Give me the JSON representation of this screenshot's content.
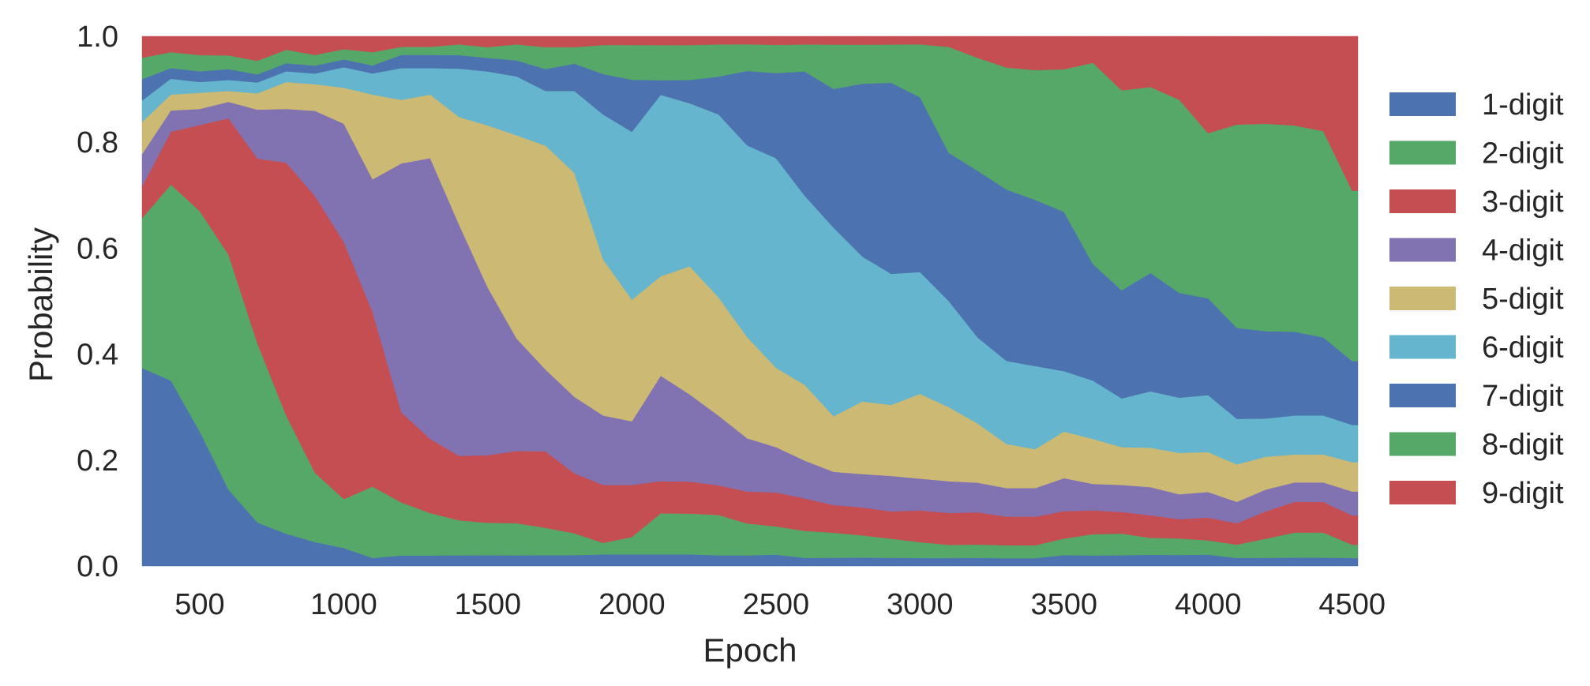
{
  "chart_data": {
    "type": "area",
    "stacked": true,
    "normalized": true,
    "xlabel": "Epoch",
    "ylabel": "Probability",
    "xlim": [
      300,
      4520
    ],
    "ylim": [
      0,
      1
    ],
    "x_ticks": [
      500,
      1000,
      1500,
      2000,
      2500,
      3000,
      3500,
      4000,
      4500
    ],
    "y_ticks": [
      0.0,
      0.2,
      0.4,
      0.6,
      0.8,
      1.0
    ],
    "grid": false,
    "legend_position": "right",
    "x": [
      300,
      400,
      500,
      600,
      700,
      800,
      900,
      1000,
      1100,
      1200,
      1300,
      1400,
      1500,
      1600,
      1700,
      1800,
      1900,
      2000,
      2100,
      2200,
      2300,
      2400,
      2500,
      2600,
      2700,
      2800,
      2900,
      3000,
      3100,
      3200,
      3300,
      3400,
      3500,
      3600,
      3700,
      3800,
      3900,
      4000,
      4100,
      4200,
      4300,
      4400,
      4500,
      4520
    ],
    "series": [
      {
        "name": "1-digit",
        "color": "#4c72b0",
        "values": [
          0.37,
          0.35,
          0.25,
          0.14,
          0.08,
          0.06,
          0.045,
          0.035,
          0.015,
          0.02,
          0.02,
          0.02,
          0.02,
          0.02,
          0.02,
          0.02,
          0.02,
          0.02,
          0.02,
          0.02,
          0.02,
          0.02,
          0.02,
          0.015,
          0.015,
          0.015,
          0.015,
          0.015,
          0.015,
          0.015,
          0.015,
          0.015,
          0.02,
          0.02,
          0.02,
          0.02,
          0.02,
          0.02,
          0.015,
          0.015,
          0.015,
          0.015,
          0.015,
          0.015
        ]
      },
      {
        "name": "2-digit",
        "color": "#55a868",
        "values": [
          0.28,
          0.37,
          0.41,
          0.43,
          0.33,
          0.22,
          0.13,
          0.095,
          0.135,
          0.1,
          0.08,
          0.065,
          0.06,
          0.06,
          0.05,
          0.04,
          0.02,
          0.03,
          0.07,
          0.07,
          0.075,
          0.06,
          0.05,
          0.05,
          0.045,
          0.04,
          0.035,
          0.03,
          0.025,
          0.025,
          0.025,
          0.025,
          0.03,
          0.04,
          0.04,
          0.03,
          0.03,
          0.025,
          0.025,
          0.035,
          0.045,
          0.045,
          0.025,
          0.025
        ]
      },
      {
        "name": "3-digit",
        "color": "#c44e52",
        "values": [
          0.06,
          0.1,
          0.16,
          0.25,
          0.34,
          0.47,
          0.52,
          0.5,
          0.33,
          0.17,
          0.14,
          0.12,
          0.125,
          0.135,
          0.14,
          0.11,
          0.1,
          0.09,
          0.055,
          0.055,
          0.055,
          0.06,
          0.06,
          0.06,
          0.05,
          0.05,
          0.05,
          0.06,
          0.06,
          0.06,
          0.055,
          0.055,
          0.05,
          0.045,
          0.04,
          0.04,
          0.035,
          0.04,
          0.04,
          0.05,
          0.055,
          0.055,
          0.055,
          0.055
        ]
      },
      {
        "name": "4-digit",
        "color": "#8172b2",
        "values": [
          0.06,
          0.04,
          0.03,
          0.03,
          0.09,
          0.1,
          0.16,
          0.23,
          0.25,
          0.47,
          0.53,
          0.43,
          0.31,
          0.21,
          0.15,
          0.14,
          0.12,
          0.11,
          0.18,
          0.15,
          0.13,
          0.1,
          0.08,
          0.07,
          0.06,
          0.06,
          0.065,
          0.06,
          0.06,
          0.055,
          0.055,
          0.055,
          0.06,
          0.05,
          0.05,
          0.05,
          0.045,
          0.045,
          0.04,
          0.04,
          0.035,
          0.035,
          0.045,
          0.045
        ]
      },
      {
        "name": "5-digit",
        "color": "#ccb974",
        "values": [
          0.06,
          0.03,
          0.03,
          0.02,
          0.03,
          0.05,
          0.05,
          0.07,
          0.16,
          0.12,
          0.12,
          0.2,
          0.3,
          0.38,
          0.41,
          0.41,
          0.27,
          0.21,
          0.17,
          0.22,
          0.22,
          0.19,
          0.14,
          0.14,
          0.1,
          0.13,
          0.13,
          0.16,
          0.14,
          0.11,
          0.085,
          0.075,
          0.085,
          0.085,
          0.07,
          0.07,
          0.075,
          0.07,
          0.07,
          0.06,
          0.05,
          0.05,
          0.055,
          0.055
        ]
      },
      {
        "name": "6-digit",
        "color": "#64b5cd",
        "values": [
          0.04,
          0.03,
          0.02,
          0.02,
          0.02,
          0.02,
          0.02,
          0.04,
          0.04,
          0.06,
          0.05,
          0.09,
          0.1,
          0.11,
          0.1,
          0.15,
          0.25,
          0.29,
          0.31,
          0.28,
          0.34,
          0.36,
          0.37,
          0.35,
          0.34,
          0.26,
          0.24,
          0.23,
          0.2,
          0.16,
          0.16,
          0.16,
          0.11,
          0.11,
          0.09,
          0.1,
          0.1,
          0.1,
          0.085,
          0.07,
          0.07,
          0.07,
          0.07,
          0.07
        ]
      },
      {
        "name": "7-digit",
        "color": "#4c72b0",
        "values": [
          0.04,
          0.02,
          0.02,
          0.02,
          0.015,
          0.015,
          0.015,
          0.015,
          0.015,
          0.025,
          0.025,
          0.025,
          0.025,
          0.03,
          0.04,
          0.05,
          0.07,
          0.09,
          0.025,
          0.04,
          0.07,
          0.14,
          0.15,
          0.23,
          0.25,
          0.31,
          0.35,
          0.33,
          0.28,
          0.31,
          0.33,
          0.32,
          0.29,
          0.22,
          0.2,
          0.21,
          0.19,
          0.17,
          0.17,
          0.16,
          0.15,
          0.14,
          0.12,
          0.12
        ]
      },
      {
        "name": "8-digit",
        "color": "#55a868",
        "values": [
          0.04,
          0.03,
          0.03,
          0.025,
          0.025,
          0.025,
          0.02,
          0.02,
          0.025,
          0.015,
          0.015,
          0.02,
          0.02,
          0.03,
          0.04,
          0.03,
          0.05,
          0.06,
          0.06,
          0.06,
          0.06,
          0.05,
          0.05,
          0.05,
          0.08,
          0.07,
          0.07,
          0.1,
          0.2,
          0.21,
          0.235,
          0.25,
          0.26,
          0.38,
          0.37,
          0.33,
          0.35,
          0.29,
          0.38,
          0.38,
          0.37,
          0.37,
          0.32,
          0.32
        ]
      },
      {
        "name": "9-digit",
        "color": "#c44e52",
        "values": [
          0.04,
          0.03,
          0.035,
          0.035,
          0.045,
          0.025,
          0.035,
          0.025,
          0.03,
          0.02,
          0.02,
          0.015,
          0.02,
          0.015,
          0.02,
          0.02,
          0.015,
          0.015,
          0.015,
          0.015,
          0.015,
          0.015,
          0.015,
          0.015,
          0.015,
          0.015,
          0.015,
          0.015,
          0.02,
          0.04,
          0.06,
          0.065,
          0.06,
          0.05,
          0.1,
          0.09,
          0.115,
          0.17,
          0.165,
          0.16,
          0.16,
          0.17,
          0.29,
          0.29
        ]
      }
    ]
  }
}
